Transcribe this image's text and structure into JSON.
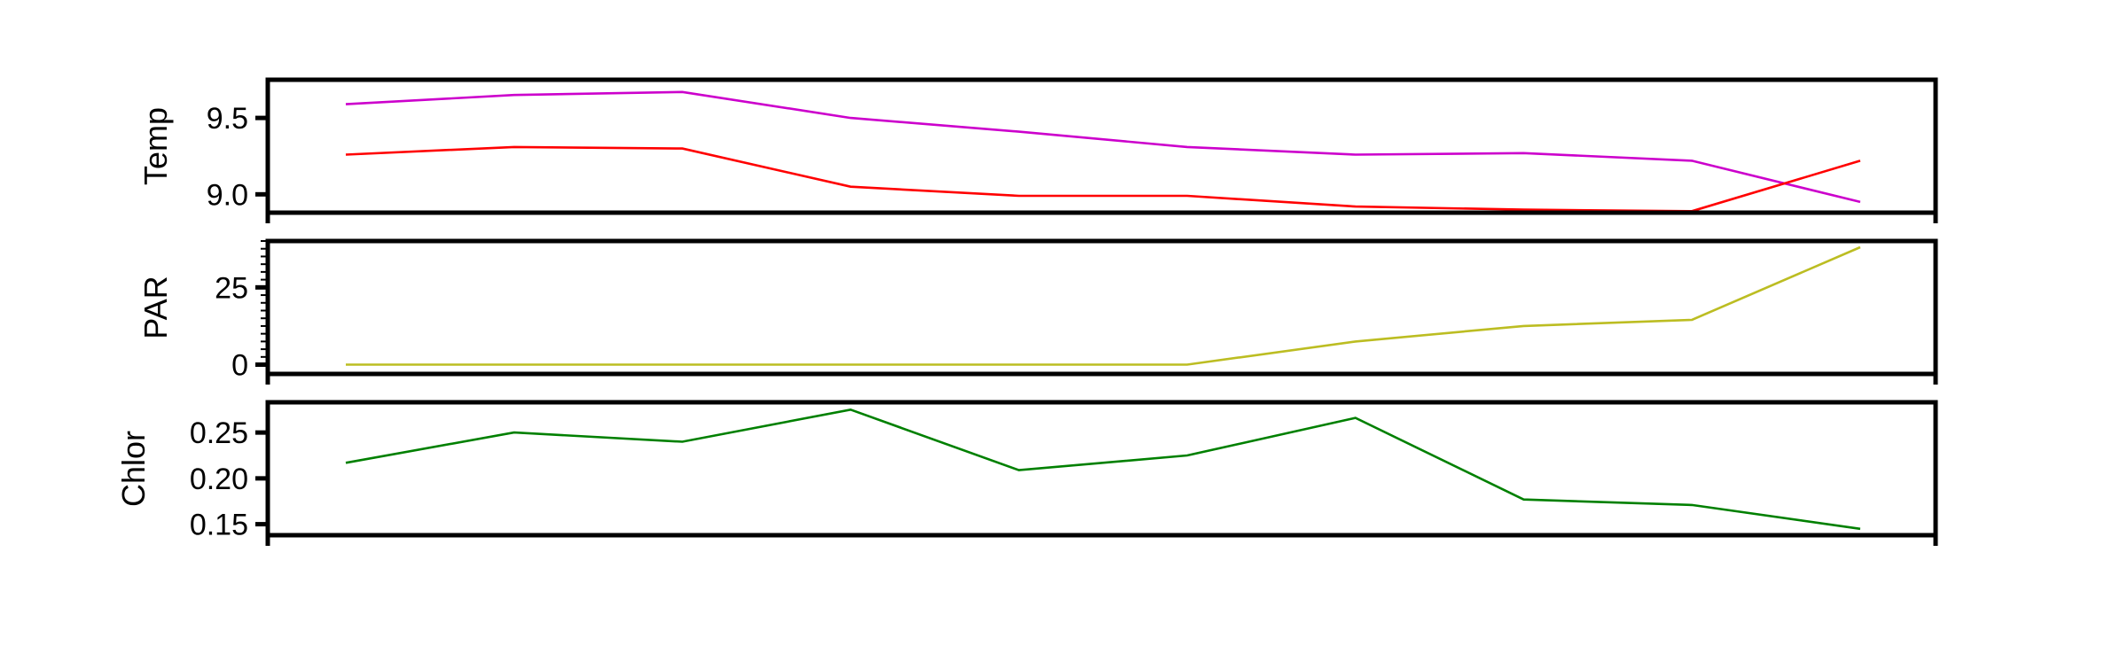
{
  "chart_data": [
    {
      "type": "line",
      "ylabel": "Temp",
      "ylim": [
        8.88,
        9.75
      ],
      "yticks": [
        9.0,
        9.5
      ],
      "ytick_labels": [
        "9.0",
        "9.5"
      ],
      "x": [
        1,
        2,
        3,
        4,
        5,
        6,
        7,
        8,
        9,
        10
      ],
      "series": [
        {
          "color": "#cc00cc",
          "values": [
            9.59,
            9.65,
            9.67,
            9.5,
            9.41,
            9.31,
            9.26,
            9.27,
            9.22,
            8.95
          ]
        },
        {
          "color": "#ff0000",
          "values": [
            9.26,
            9.31,
            9.3,
            9.05,
            8.99,
            8.99,
            8.92,
            8.9,
            8.89,
            9.22
          ]
        }
      ],
      "grid": false
    },
    {
      "type": "line",
      "ylabel": "PAR",
      "ylim": [
        -3,
        40
      ],
      "yticks": [
        0,
        25
      ],
      "ytick_labels": [
        "0",
        "25"
      ],
      "x": [
        1,
        2,
        3,
        4,
        5,
        6,
        7,
        8,
        9,
        10
      ],
      "series": [
        {
          "color": "#bcbd22",
          "values": [
            0,
            0,
            0,
            0,
            0,
            0,
            7.5,
            12.5,
            14.5,
            38
          ]
        }
      ],
      "grid": false
    },
    {
      "type": "line",
      "ylabel": "Chlor",
      "ylim": [
        0.138,
        0.283
      ],
      "yticks": [
        0.15,
        0.2,
        0.25
      ],
      "ytick_labels": [
        "0.15",
        "0.20",
        "0.25"
      ],
      "x": [
        1,
        2,
        3,
        4,
        5,
        6,
        7,
        8,
        9,
        10
      ],
      "series": [
        {
          "color": "#008000",
          "values": [
            0.217,
            0.25,
            0.24,
            0.275,
            0.209,
            0.225,
            0.266,
            0.177,
            0.171,
            0.145
          ]
        }
      ],
      "grid": false
    }
  ]
}
